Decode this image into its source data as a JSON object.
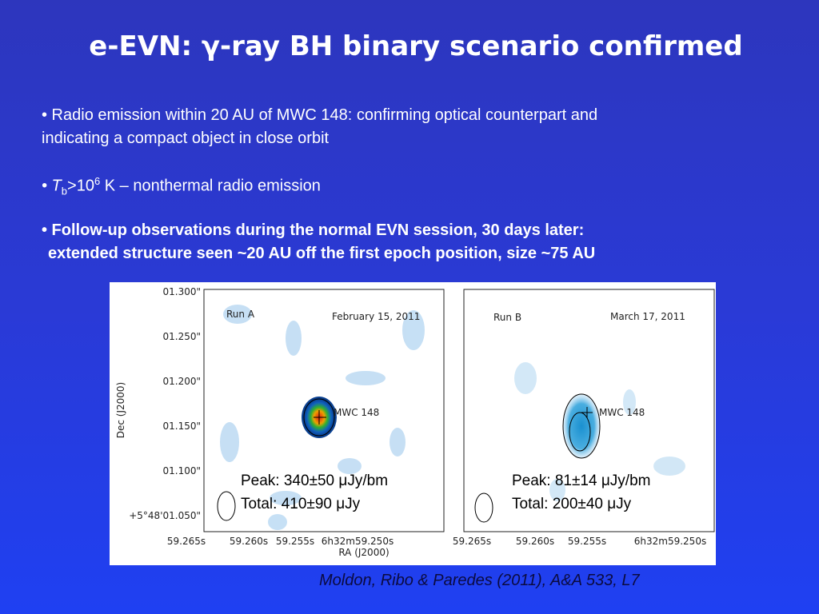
{
  "title": "e-EVN: γ-ray BH binary scenario confirmed",
  "bullets": [
    {
      "line1": "• Radio emission within 20 AU of MWC 148: confirming optical counterpart and",
      "line2": "indicating a compact object in close orbit"
    },
    {
      "parts": [
        "• T",
        "b",
        ">10",
        "6",
        " K – nonthermal radio emission"
      ]
    },
    {
      "line1": "• Follow-up observations during the normal EVN session, 30 days later:",
      "line2": "extended structure seen ~20 AU off the first epoch position, size ~75 AU"
    }
  ],
  "figure": {
    "y_axis_label": "Dec (J2000)",
    "y_ticks": [
      "01.300\"",
      "01.250\"",
      "01.200\"",
      "01.150\"",
      "01.100\"",
      "+5°48'01.050\""
    ],
    "x_axis_label": "RA (J2000)",
    "panels": [
      {
        "run": "Run A",
        "date": "February 15, 2011",
        "source": "MWC 148",
        "peak": "Peak: 340±50 μJy/bm",
        "total": "Total: 410±90 μJy",
        "x_ticks": [
          "59.265s",
          "59.260s",
          "59.255s",
          "6h32m59.250s"
        ]
      },
      {
        "run": "Run B",
        "date": "March 17, 2011",
        "source": "MWC 148",
        "peak": "Peak: 81±14 μJy/bm",
        "total": "Total: 200±40 μJy",
        "x_ticks": [
          "59.265s",
          "59.260s",
          "59.255s",
          "6h32m59.250s"
        ]
      }
    ]
  },
  "citation": "Moldon, Ribo & Paredes (2011), A&A  533, L7"
}
